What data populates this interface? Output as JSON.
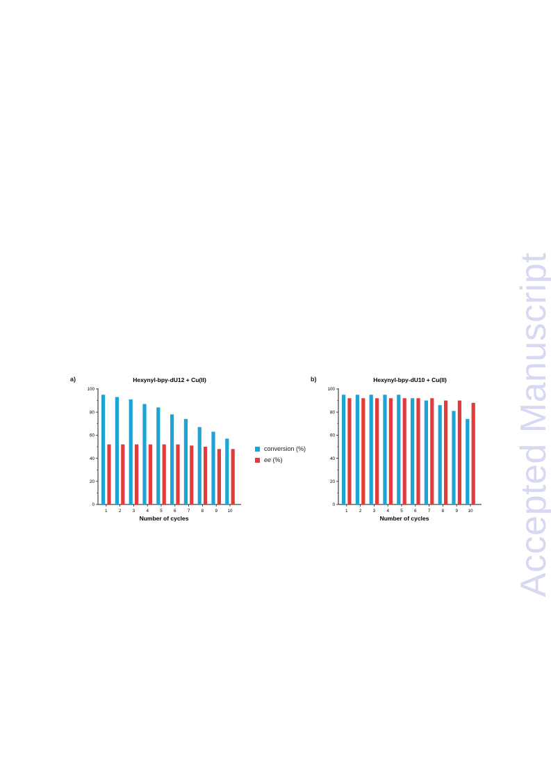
{
  "panels": {
    "a_label": "a)",
    "b_label": "b)"
  },
  "legend": {
    "conversion_label": "conversion (%)",
    "ee_label_italic": "ee",
    "ee_label_suffix": " (%)"
  },
  "watermark": "Accepted Manuscript",
  "colors": {
    "conversion": "#1da3d4",
    "ee": "#e23b3b",
    "axis": "#1a1a1a",
    "watermark": "#d7d8f2"
  },
  "chart_data": [
    {
      "type": "bar",
      "title": "Hexynyl-bpy-dU12 + Cu(II)",
      "xlabel": "Number of cycles",
      "ylabel": "",
      "ylim": [
        0,
        100
      ],
      "yticks": [
        "0",
        "20",
        "40",
        "60",
        "80",
        "100"
      ],
      "categories": [
        "1",
        "2",
        "3",
        "4",
        "5",
        "6",
        "7",
        "8",
        "9",
        "10"
      ],
      "grid": false,
      "legend_position": "right",
      "series": [
        {
          "name": "conversion (%)",
          "values": [
            95,
            93,
            91,
            87,
            84,
            78,
            74,
            67,
            63,
            57
          ]
        },
        {
          "name": "ee (%)",
          "values": [
            52,
            52,
            52,
            52,
            52,
            52,
            51,
            50,
            48,
            48
          ]
        }
      ]
    },
    {
      "type": "bar",
      "title": "Hexynyl-bpy-dU10 + Cu(II)",
      "xlabel": "Number of cycles",
      "ylabel": "",
      "ylim": [
        0,
        100
      ],
      "yticks": [
        "0",
        "20",
        "40",
        "60",
        "80",
        "100"
      ],
      "categories": [
        "1",
        "2",
        "3",
        "4",
        "5",
        "6",
        "7",
        "8",
        "9",
        "10"
      ],
      "grid": false,
      "legend_position": "right",
      "series": [
        {
          "name": "conversion (%)",
          "values": [
            95,
            95,
            95,
            95,
            95,
            92,
            90,
            86,
            81,
            74
          ]
        },
        {
          "name": "ee (%)",
          "values": [
            92,
            92,
            92,
            92,
            92,
            92,
            92,
            90,
            90,
            88
          ]
        }
      ]
    }
  ]
}
